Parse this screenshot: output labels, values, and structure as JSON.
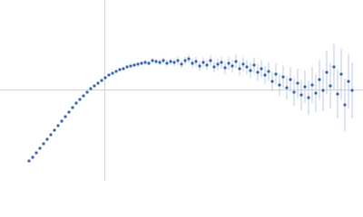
{
  "chart_data": {
    "type": "scatter",
    "color": "#3463b8",
    "error_color": "#aabde4",
    "xlim": [
      0,
      400
    ],
    "ylim": [
      0,
      200
    ],
    "x": [
      32,
      36,
      40,
      44,
      48,
      52,
      56,
      60,
      64,
      68,
      72,
      76,
      80,
      84,
      88,
      92,
      96,
      100,
      104,
      108,
      112,
      116,
      120,
      124,
      128,
      132,
      136,
      140,
      144,
      148,
      152,
      156,
      160,
      164,
      168,
      172,
      176,
      180,
      184,
      188,
      192,
      196,
      200,
      204,
      208,
      212,
      216,
      220,
      224,
      228,
      232,
      236,
      240,
      244,
      248,
      252,
      256,
      260,
      264,
      268,
      272,
      276,
      280,
      284,
      288,
      292,
      296,
      300,
      304,
      308,
      312,
      316,
      320,
      324,
      328,
      332,
      336,
      340,
      344,
      348,
      352,
      356,
      360,
      364,
      368,
      372,
      376,
      380,
      384,
      388
    ],
    "values": [
      22,
      26,
      31,
      36,
      41,
      46,
      51,
      56,
      61,
      66,
      71,
      76,
      81,
      86,
      90,
      94,
      98,
      102,
      105,
      108,
      111,
      114,
      117,
      119,
      121,
      123,
      124,
      126,
      127,
      128,
      129,
      130,
      131,
      130,
      133,
      132,
      131,
      133,
      130,
      132,
      131,
      133,
      129,
      133,
      135,
      130,
      132,
      127,
      131,
      128,
      133,
      126,
      129,
      131,
      125,
      130,
      127,
      132,
      124,
      129,
      126,
      122,
      128,
      120,
      124,
      117,
      121,
      110,
      118,
      106,
      115,
      103,
      112,
      98,
      108,
      95,
      104,
      92,
      106,
      97,
      112,
      100,
      120,
      105,
      126,
      96,
      118,
      84,
      110,
      100
    ],
    "errors": [
      0.5,
      0.5,
      0.5,
      0.5,
      0.5,
      0.5,
      0.5,
      0.5,
      0.6,
      0.6,
      0.6,
      0.7,
      0.7,
      0.7,
      0.8,
      0.8,
      0.8,
      0.9,
      0.9,
      1,
      1,
      1,
      1.2,
      1.3,
      1.4,
      1.5,
      1.6,
      1.7,
      1.8,
      2,
      2.1,
      2.2,
      2.4,
      2.6,
      2.8,
      3,
      3.2,
      3.4,
      3.6,
      3.8,
      4,
      4.2,
      4.4,
      4.6,
      4.8,
      5,
      5.2,
      5.4,
      5.6,
      5.8,
      6,
      6.2,
      6.4,
      6.6,
      6.8,
      7,
      7.2,
      7.4,
      7.6,
      7.8,
      8,
      8.4,
      8.8,
      9.2,
      9.6,
      10,
      10.5,
      11,
      11.5,
      12,
      12.5,
      13,
      14,
      15,
      16,
      17,
      18,
      19,
      20,
      21,
      22,
      23,
      24,
      25,
      26,
      27,
      28,
      29,
      30,
      31
    ]
  }
}
